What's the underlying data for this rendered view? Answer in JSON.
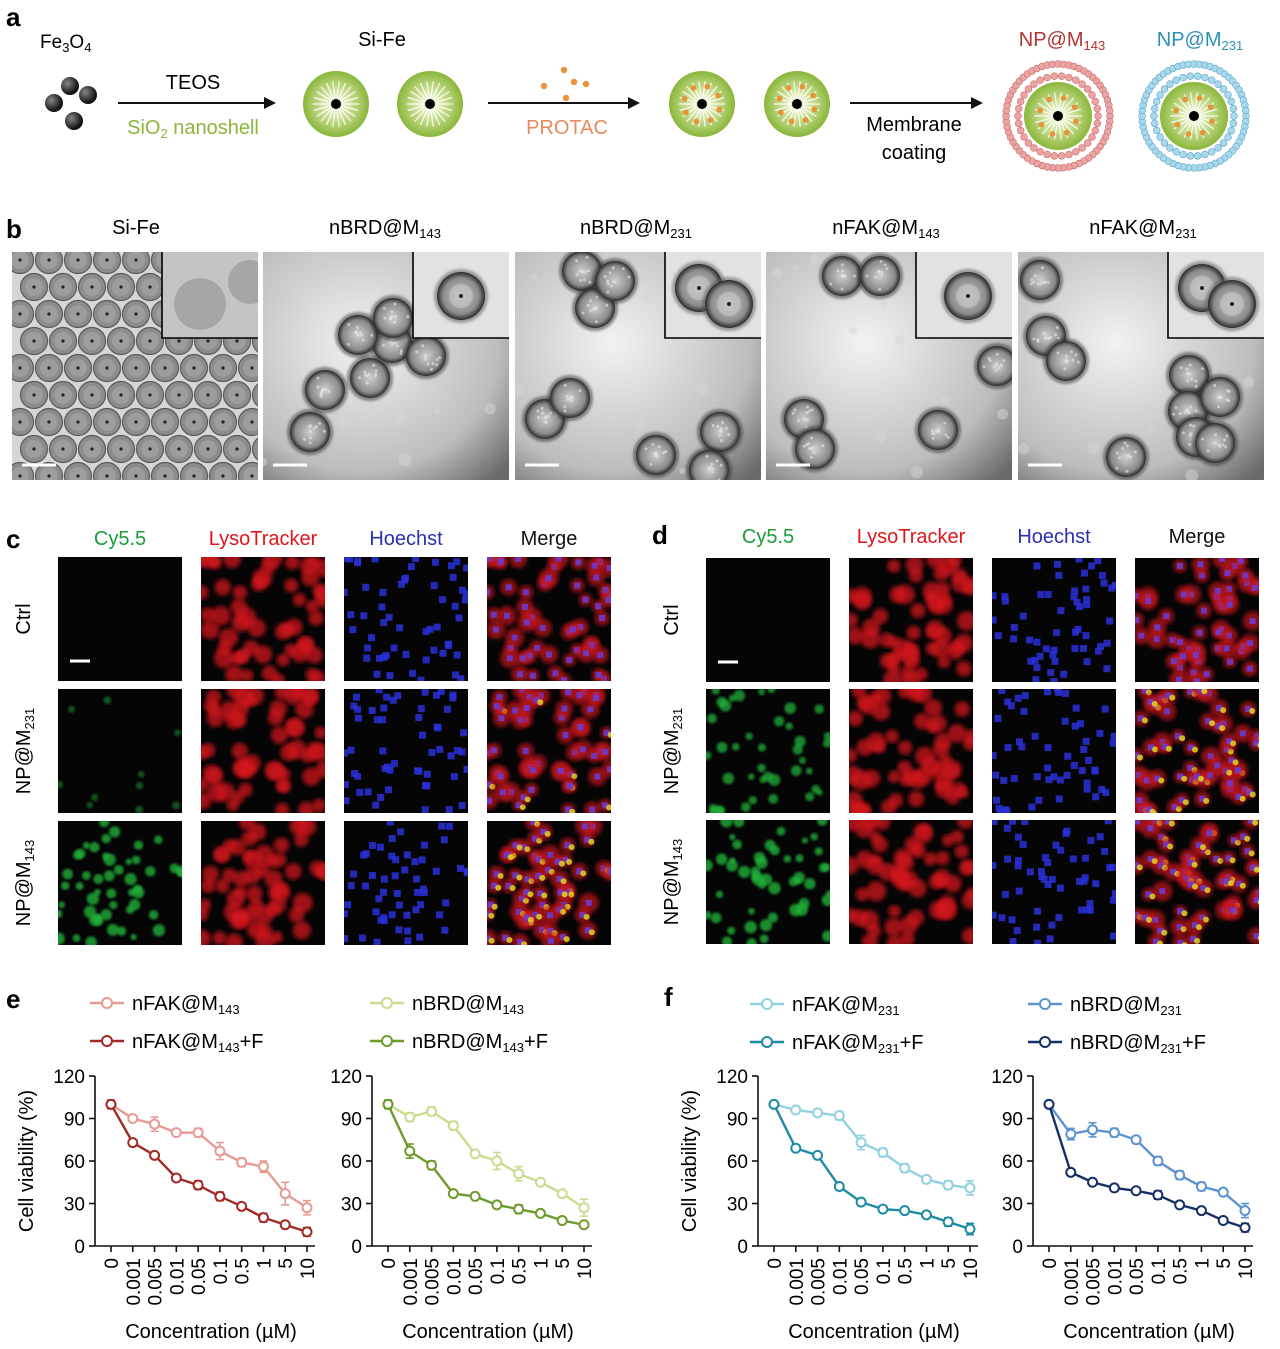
{
  "panel_a": {
    "letter": "a",
    "fe3o4_label": "Fe3O4",
    "sife_label": "Si-Fe",
    "step1_top": "TEOS",
    "step1_bottom": "SiO2 nanoshell",
    "step2_bottom": "PROTAC",
    "step3_line1": "Membrane",
    "step3_line2": "coating",
    "np143_label": "NP@M143",
    "np231_label": "NP@M231"
  },
  "panel_b": {
    "letter": "b",
    "titles": [
      "Si-Fe",
      "nBRD@M143",
      "nBRD@M231",
      "nFAK@M143",
      "nFAK@M231"
    ]
  },
  "panel_c": {
    "letter": "c",
    "columns": [
      "Cy5.5",
      "LysoTracker",
      "Hoechst",
      "Merge"
    ],
    "rows": [
      "Ctrl",
      "NP@M231",
      "NP@M143"
    ]
  },
  "panel_d": {
    "letter": "d",
    "columns": [
      "Cy5.5",
      "LysoTracker",
      "Hoechst",
      "Merge"
    ],
    "rows": [
      "Ctrl",
      "NP@M231",
      "NP@M143"
    ]
  },
  "colors": {
    "green_channel": "#1a9d3a",
    "red_channel": "#e0161a",
    "blue_channel": "#2a2fb0",
    "shell_green": "#8ab63a",
    "nFAK143": "#e79a93",
    "nFAK143F": "#a12a25",
    "nBRD143": "#c9dd8f",
    "nBRD143F": "#6e9a2c",
    "nFAK231": "#8fd0e1",
    "nFAK231F": "#1e8aa4",
    "nBRD231": "#5c93d0",
    "nBRD231F": "#162f66"
  },
  "chart_data": [
    {
      "panel": "e",
      "type": "line",
      "ylabel": "Cell viability (%)",
      "xlabel": "Concentration (µM)",
      "categories": [
        "0",
        "0.001",
        "0.005",
        "0.01",
        "0.05",
        "0.1",
        "0.5",
        "1",
        "5",
        "10"
      ],
      "ylim": [
        0,
        120
      ],
      "yticks": [
        "0",
        "30",
        "60",
        "90",
        "120"
      ],
      "series": [
        {
          "name": "nFAK@M143",
          "values": [
            100,
            90,
            86,
            80,
            80,
            67,
            59,
            56,
            37,
            27
          ],
          "errors": [
            3,
            2,
            5,
            2,
            3,
            6,
            3,
            4,
            8,
            5
          ]
        },
        {
          "name": "nFAK@M143+F",
          "values": [
            100,
            73,
            64,
            48,
            43,
            35,
            28,
            20,
            15,
            10
          ],
          "errors": [
            3,
            2,
            2,
            2,
            3,
            3,
            2,
            3,
            2,
            3
          ]
        }
      ]
    },
    {
      "panel": "e",
      "type": "line",
      "ylabel": "",
      "xlabel": "Concentration (µM)",
      "categories": [
        "0",
        "0.001",
        "0.005",
        "0.01",
        "0.05",
        "0.1",
        "0.5",
        "1",
        "5",
        "10"
      ],
      "ylim": [
        0,
        120
      ],
      "yticks": [
        "0",
        "30",
        "60",
        "90",
        "120"
      ],
      "series": [
        {
          "name": "nBRD@M143",
          "values": [
            100,
            91,
            95,
            85,
            65,
            60,
            51,
            45,
            37,
            27
          ],
          "errors": [
            3,
            3,
            3,
            3,
            2,
            6,
            5,
            2,
            2,
            6
          ]
        },
        {
          "name": "nBRD@M143+F",
          "values": [
            100,
            67,
            57,
            37,
            35,
            29,
            26,
            23,
            18,
            15
          ],
          "errors": [
            3,
            5,
            3,
            2,
            2,
            2,
            3,
            2,
            2,
            2
          ]
        }
      ]
    },
    {
      "panel": "f",
      "type": "line",
      "ylabel": "Cell viability (%)",
      "xlabel": "Concentration (µM)",
      "categories": [
        "0",
        "0.001",
        "0.005",
        "0.01",
        "0.05",
        "0.1",
        "0.5",
        "1",
        "5",
        "10"
      ],
      "ylim": [
        0,
        120
      ],
      "yticks": [
        "0",
        "30",
        "60",
        "90",
        "120"
      ],
      "series": [
        {
          "name": "nFAK@M231",
          "values": [
            100,
            96,
            94,
            92,
            73,
            66,
            55,
            47,
            43,
            41
          ],
          "errors": [
            2,
            2,
            2,
            3,
            5,
            3,
            3,
            2,
            3,
            5
          ]
        },
        {
          "name": "nFAK@M231+F",
          "values": [
            100,
            69,
            64,
            42,
            31,
            26,
            25,
            22,
            17,
            12
          ],
          "errors": [
            2,
            2,
            2,
            2,
            2,
            2,
            2,
            2,
            3,
            4
          ]
        }
      ]
    },
    {
      "panel": "f",
      "type": "line",
      "ylabel": "",
      "xlabel": "Concentration (µM)",
      "categories": [
        "0",
        "0.001",
        "0.005",
        "0.01",
        "0.05",
        "0.1",
        "0.5",
        "1",
        "5",
        "10"
      ],
      "ylim": [
        0,
        120
      ],
      "yticks": [
        "0",
        "30",
        "60",
        "90",
        "120"
      ],
      "series": [
        {
          "name": "nBRD@M231",
          "values": [
            100,
            79,
            82,
            80,
            75,
            60,
            50,
            42,
            38,
            25
          ],
          "errors": [
            2,
            4,
            5,
            3,
            2,
            3,
            3,
            3,
            2,
            5
          ]
        },
        {
          "name": "nBRD@M231+F",
          "values": [
            100,
            52,
            45,
            41,
            39,
            36,
            29,
            25,
            18,
            13
          ],
          "errors": [
            2,
            2,
            2,
            2,
            2,
            3,
            2,
            2,
            2,
            3
          ]
        }
      ]
    }
  ]
}
